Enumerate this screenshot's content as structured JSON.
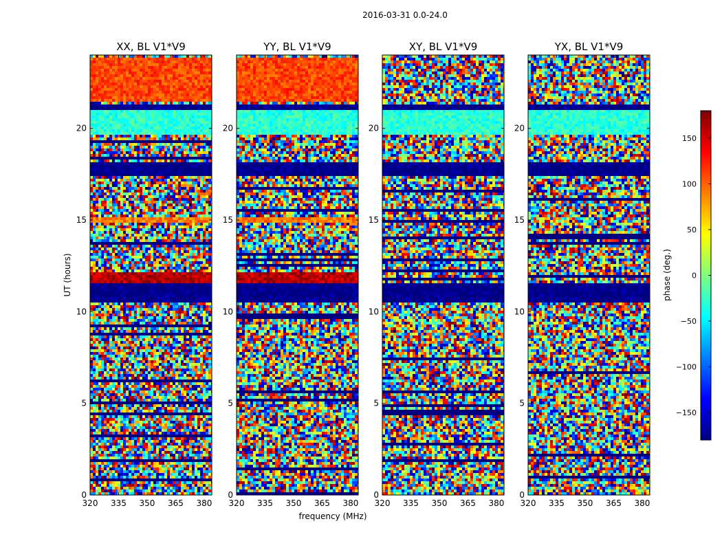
{
  "figure": {
    "suptitle": "2016-03-31 0.0-24.0",
    "xlabel": "frequency (MHz)",
    "ylabel": "UT (hours)"
  },
  "chart_data": [
    {
      "type": "heatmap",
      "title": "XX, BL V1*V9",
      "xlim": [
        320,
        384
      ],
      "ylim": [
        0,
        24
      ],
      "xticks": [
        320,
        335,
        350,
        365,
        380
      ],
      "yticks": [
        0,
        5,
        10,
        15,
        20
      ],
      "value_range": [
        -180,
        180
      ],
      "note_regions": [
        {
          "ut": [
            10.5,
            11.5
          ],
          "phase": -180
        },
        {
          "ut": [
            11.6,
            12.1
          ],
          "phase": 160
        },
        {
          "ut": [
            14.9,
            15.1
          ],
          "phase": 90
        },
        {
          "ut": [
            17.4,
            18.2
          ],
          "phase": -180
        },
        {
          "ut": [
            19.6,
            21.0
          ],
          "phase": -30
        },
        {
          "ut": [
            21.0,
            21.3
          ],
          "phase": -180
        },
        {
          "ut": [
            21.5,
            23.9
          ],
          "phase": 110
        }
      ]
    },
    {
      "type": "heatmap",
      "title": "YY, BL V1*V9",
      "xlim": [
        320,
        384
      ],
      "ylim": [
        0,
        24
      ],
      "xticks": [
        320,
        335,
        350,
        365,
        380
      ],
      "yticks": [
        0,
        5,
        10,
        15,
        20
      ],
      "value_range": [
        -180,
        180
      ],
      "note_regions": [
        {
          "ut": [
            10.5,
            11.5
          ],
          "phase": -180
        },
        {
          "ut": [
            11.6,
            12.1
          ],
          "phase": 160
        },
        {
          "ut": [
            14.9,
            15.1
          ],
          "phase": 90
        },
        {
          "ut": [
            17.4,
            18.2
          ],
          "phase": -180
        },
        {
          "ut": [
            19.6,
            21.0
          ],
          "phase": -30
        },
        {
          "ut": [
            21.0,
            21.3
          ],
          "phase": -180
        },
        {
          "ut": [
            21.5,
            23.9
          ],
          "phase": 110
        }
      ]
    },
    {
      "type": "heatmap",
      "title": "XY, BL V1*V9",
      "xlim": [
        320,
        384
      ],
      "ylim": [
        0,
        24
      ],
      "xticks": [
        320,
        335,
        350,
        365,
        380
      ],
      "yticks": [
        0,
        5,
        10,
        15,
        20
      ],
      "value_range": [
        -180,
        180
      ],
      "note_regions": [
        {
          "ut": [
            10.5,
            11.5
          ],
          "phase": -180
        },
        {
          "ut": [
            17.4,
            18.2
          ],
          "phase": -180
        },
        {
          "ut": [
            19.6,
            21.0
          ],
          "phase": -30
        },
        {
          "ut": [
            21.0,
            21.3
          ],
          "phase": -180
        }
      ]
    },
    {
      "type": "heatmap",
      "title": "YX, BL V1*V9",
      "xlim": [
        320,
        384
      ],
      "ylim": [
        0,
        24
      ],
      "xticks": [
        320,
        335,
        350,
        365,
        380
      ],
      "yticks": [
        0,
        5,
        10,
        15,
        20
      ],
      "value_range": [
        -180,
        180
      ],
      "note_regions": [
        {
          "ut": [
            10.5,
            11.5
          ],
          "phase": -180
        },
        {
          "ut": [
            17.4,
            18.2
          ],
          "phase": -180
        },
        {
          "ut": [
            19.6,
            21.0
          ],
          "phase": -30
        },
        {
          "ut": [
            21.0,
            21.3
          ],
          "phase": -180
        }
      ]
    }
  ],
  "colorbar": {
    "label": "phase (deg.)",
    "range": [
      -180,
      180
    ],
    "ticks": [
      -150,
      -100,
      -50,
      0,
      50,
      100,
      150
    ],
    "colormap": "jet",
    "colors": [
      "#00007f",
      "#0000ff",
      "#007fff",
      "#00ffff",
      "#7fff7f",
      "#ffff00",
      "#ff7f00",
      "#ff0000",
      "#7f0000"
    ]
  }
}
